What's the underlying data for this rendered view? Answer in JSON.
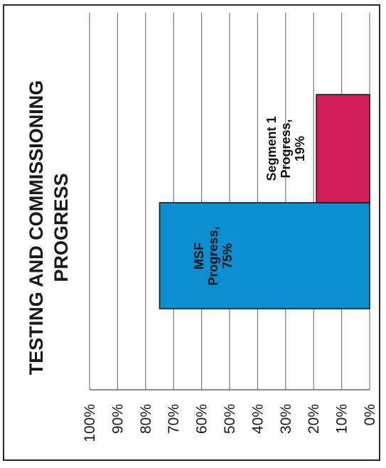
{
  "chart_data": {
    "type": "bar",
    "orientation": "rotated-90-ccw",
    "title": "TESTING AND COMMISSIONING PROGRESS",
    "xlabel": "",
    "ylabel": "",
    "ylim": [
      0,
      100
    ],
    "tick_labels": [
      "0%",
      "10%",
      "20%",
      "30%",
      "40%",
      "50%",
      "60%",
      "70%",
      "80%",
      "90%",
      "100%"
    ],
    "grid": true,
    "categories": [
      "MSF Progress",
      "Segment 1 Progress"
    ],
    "values": [
      75,
      19
    ],
    "data_labels": [
      [
        "MSF",
        "Progress,",
        "75%"
      ],
      [
        "Segment 1",
        "Progress,",
        "19%"
      ]
    ],
    "colors": [
      "#0a8fd0",
      "#d11d5a"
    ]
  }
}
